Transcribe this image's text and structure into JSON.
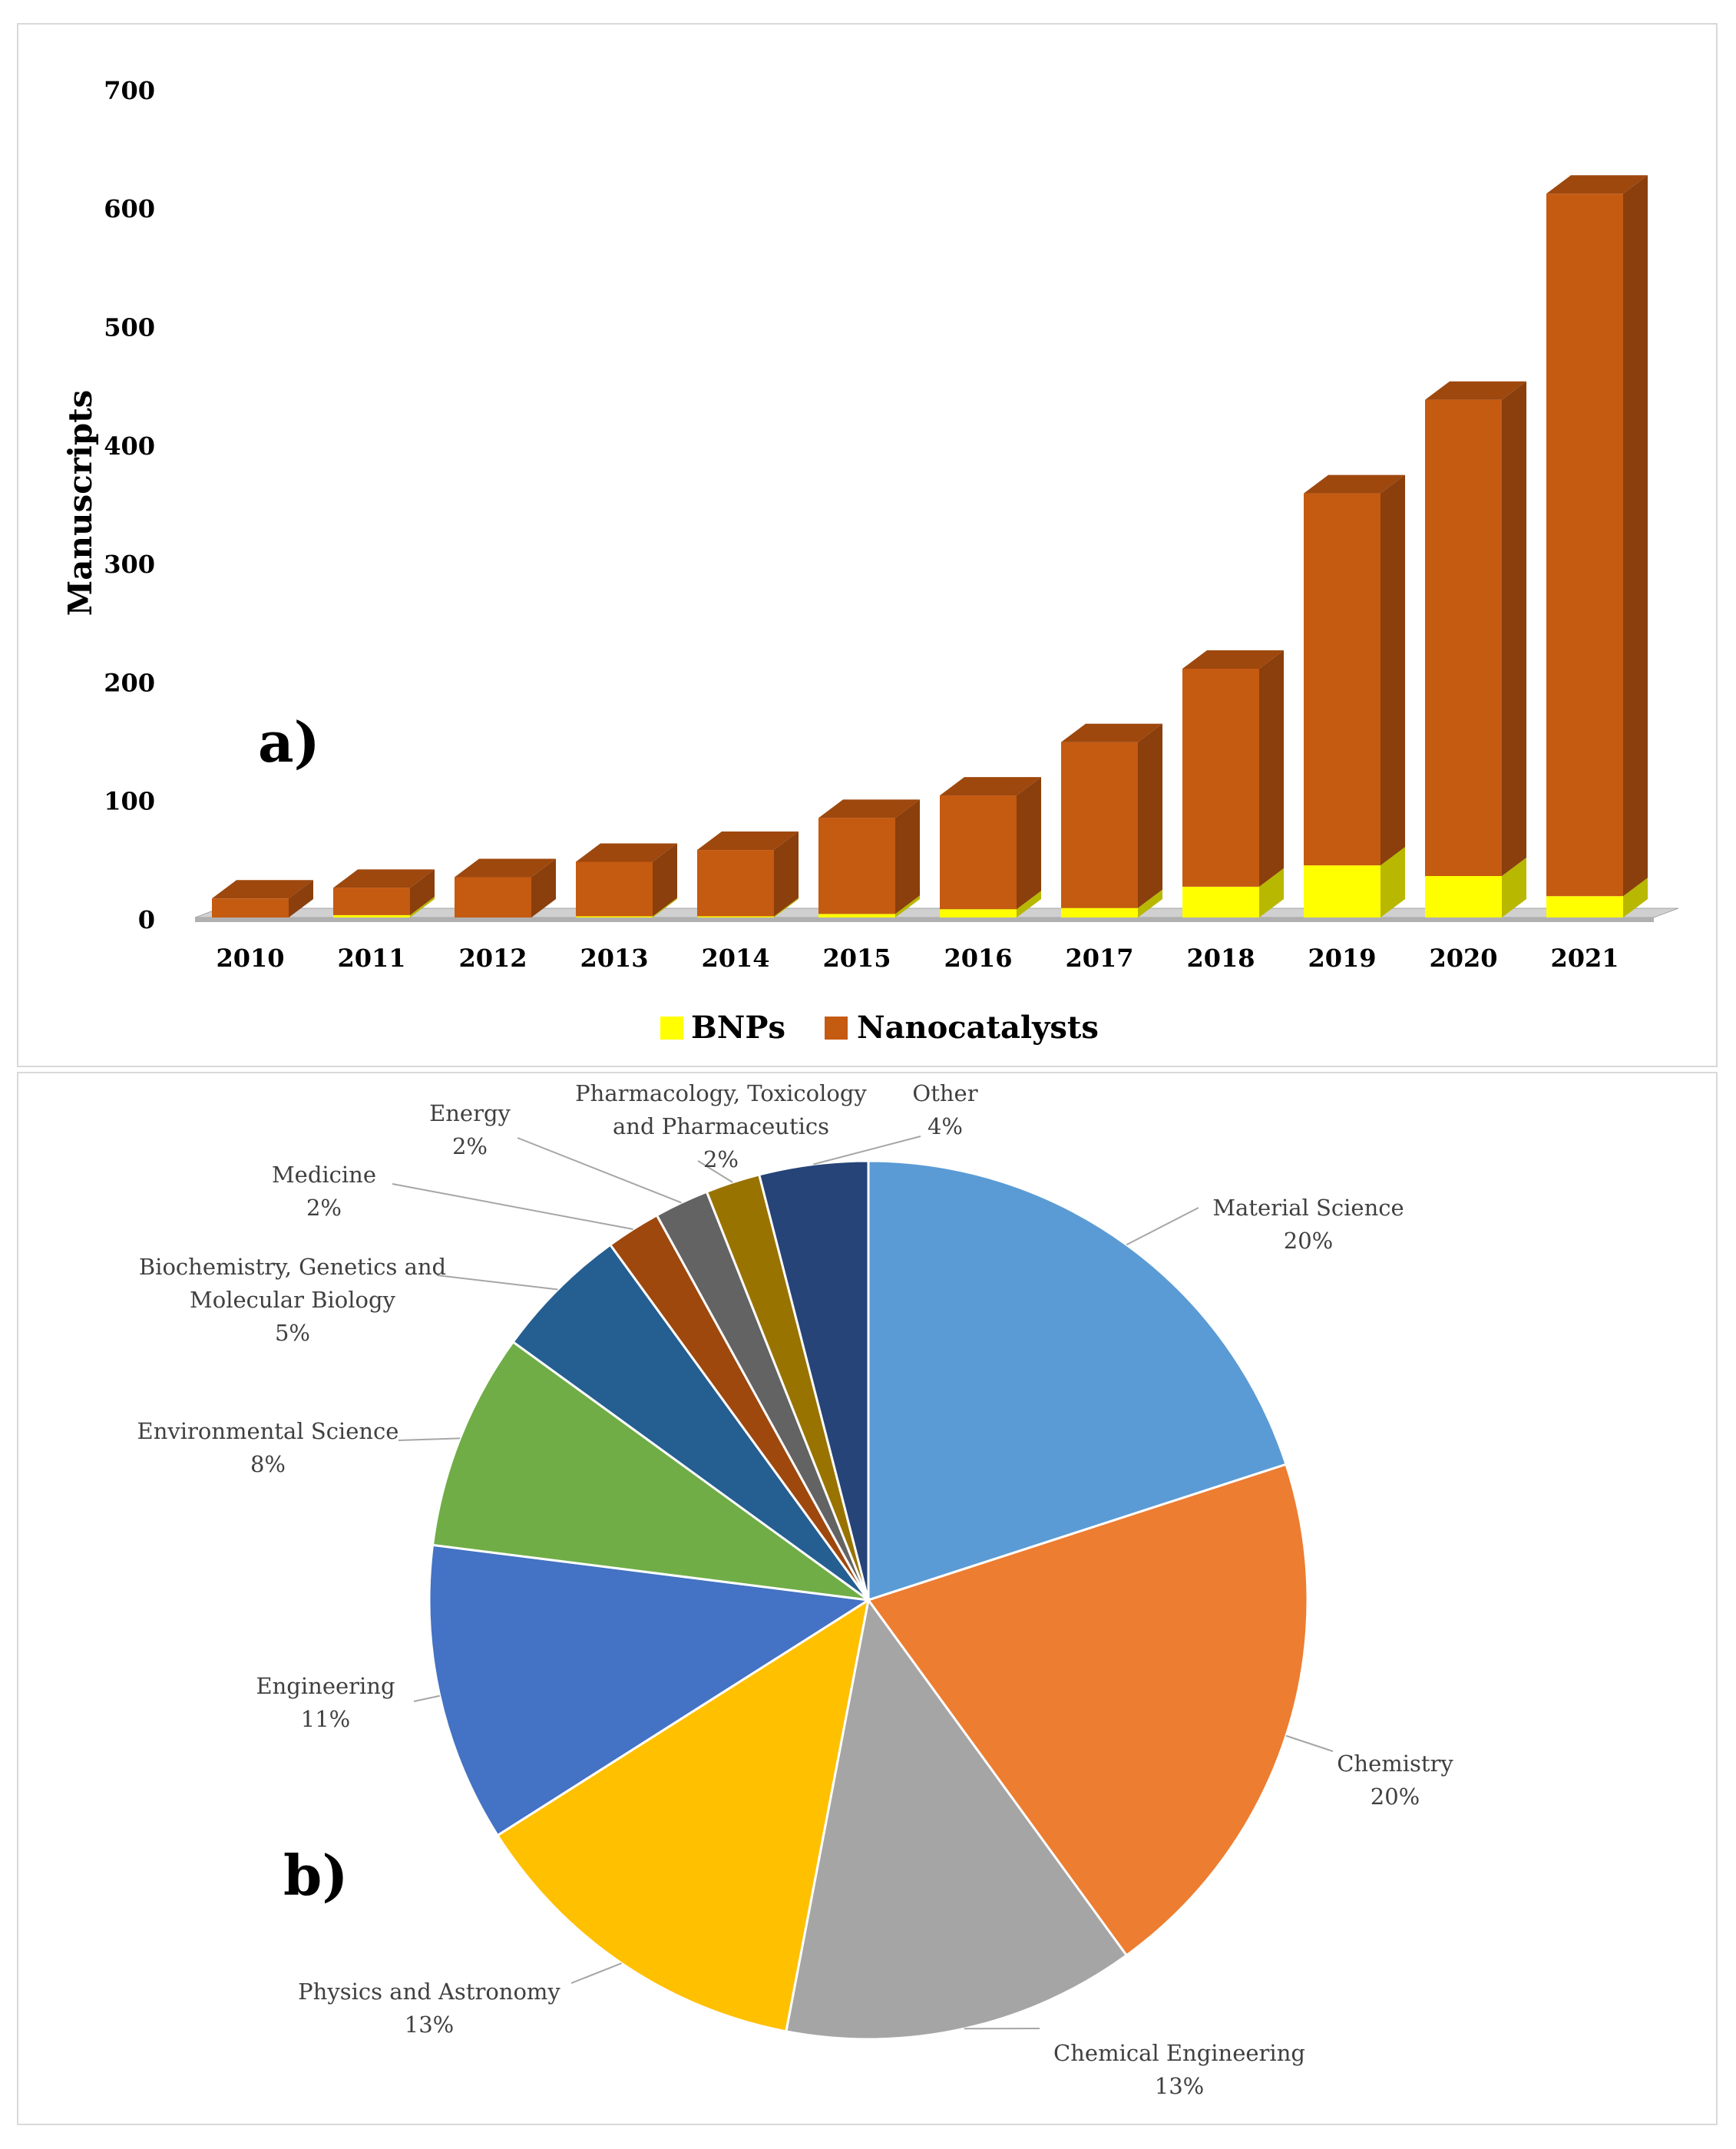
{
  "chart_data": [
    {
      "type": "bar",
      "stacked": true,
      "panel_label": "a)",
      "ylabel": "Manuscripts",
      "ylim": [
        0,
        700
      ],
      "yticks": [
        "0",
        "100",
        "200",
        "300",
        "400",
        "500",
        "600",
        "700"
      ],
      "categories": [
        "2010",
        "2011",
        "2012",
        "2013",
        "2014",
        "2015",
        "2016",
        "2017",
        "2018",
        "2019",
        "2020",
        "2021"
      ],
      "series": [
        {
          "name": "BNPs",
          "color": "#ffff00",
          "values": [
            0,
            2,
            0,
            1,
            1,
            3,
            7,
            8,
            26,
            44,
            35,
            18
          ]
        },
        {
          "name": "Nanocatalysts",
          "color": "#c55a11",
          "values": [
            16,
            23,
            34,
            46,
            56,
            81,
            96,
            140,
            184,
            314,
            402,
            593
          ]
        }
      ],
      "legend": [
        "BNPs",
        "Nanocatalysts"
      ],
      "legend_position": "bottom"
    },
    {
      "type": "pie",
      "panel_label": "b)",
      "slices": [
        {
          "label": "Material Science",
          "value": 20,
          "pct": "20%",
          "color": "#5b9bd5"
        },
        {
          "label": "Chemistry",
          "value": 20,
          "pct": "20%",
          "color": "#ed7d31"
        },
        {
          "label": "Chemical Engineering",
          "value": 13,
          "pct": "13%",
          "color": "#a5a5a5"
        },
        {
          "label": "Physics and Astronomy",
          "value": 13,
          "pct": "13%",
          "color": "#ffc000"
        },
        {
          "label": "Engineering",
          "value": 11,
          "pct": "11%",
          "color": "#4472c4"
        },
        {
          "label": "Environmental Science",
          "value": 8,
          "pct": "8%",
          "color": "#70ad47"
        },
        {
          "label": "Biochemistry, Genetics and Molecular Biology",
          "value": 5,
          "pct": "5%",
          "color": "#255e91"
        },
        {
          "label": "Medicine",
          "value": 2,
          "pct": "2%",
          "color": "#9e480e"
        },
        {
          "label": "Energy",
          "value": 2,
          "pct": "2%",
          "color": "#636363"
        },
        {
          "label": "Pharmacology, Toxicology and Pharmaceutics",
          "value": 2,
          "pct": "2%",
          "color": "#997300"
        },
        {
          "label": "Other",
          "value": 4,
          "pct": "4%",
          "color": "#264478"
        }
      ]
    }
  ]
}
